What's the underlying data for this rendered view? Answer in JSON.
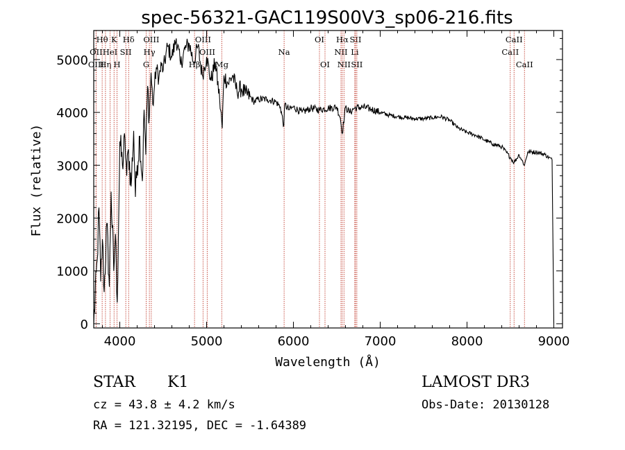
{
  "chart_data": {
    "type": "line",
    "title": "spec-56321-GAC119S00V3_sp06-216.fits",
    "xlabel": "Wavelength (Å)",
    "ylabel": "Flux (relative)",
    "xlim": [
      3700,
      9100
    ],
    "ylim": [
      -80,
      5550
    ],
    "xticks": [
      4000,
      5000,
      6000,
      7000,
      8000,
      9000
    ],
    "xtick_labels": [
      "4000",
      "5000",
      "6000",
      "7000",
      "8000",
      "9000"
    ],
    "yticks": [
      0,
      1000,
      2000,
      3000,
      4000,
      5000
    ],
    "ytick_labels": [
      "0",
      "1000",
      "2000",
      "3000",
      "4000",
      "5000"
    ],
    "spectrum": {
      "x": [
        3700,
        3740,
        3760,
        3780,
        3800,
        3820,
        3850,
        3880,
        3900,
        3930,
        3950,
        3970,
        3990,
        4000,
        4030,
        4060,
        4080,
        4100,
        4130,
        4160,
        4180,
        4200,
        4230,
        4260,
        4280,
        4300,
        4320,
        4340,
        4360,
        4380,
        4400,
        4420,
        4450,
        4480,
        4500,
        4550,
        4600,
        4650,
        4700,
        4750,
        4800,
        4850,
        4900,
        4950,
        5000,
        5050,
        5100,
        5150,
        5180,
        5200,
        5250,
        5300,
        5350,
        5400,
        5450,
        5500,
        5550,
        5600,
        5700,
        5800,
        5850,
        5890,
        5900,
        5950,
        6000,
        6100,
        6200,
        6300,
        6400,
        6500,
        6540,
        6563,
        6600,
        6650,
        6700,
        6800,
        6900,
        7000,
        7100,
        7200,
        7300,
        7400,
        7500,
        7600,
        7700,
        7800,
        7900,
        8000,
        8100,
        8200,
        8300,
        8400,
        8498,
        8542,
        8600,
        8662,
        8700,
        8800,
        8900,
        8980,
        9000
      ],
      "y": [
        0,
        1200,
        2200,
        800,
        1600,
        600,
        1900,
        700,
        2500,
        1000,
        1700,
        400,
        2300,
        3450,
        3000,
        3500,
        2800,
        3300,
        2600,
        3650,
        2400,
        3000,
        3550,
        2700,
        4050,
        3200,
        4500,
        3900,
        4750,
        4150,
        4500,
        4850,
        4650,
        4900,
        4800,
        5250,
        5050,
        5400,
        4900,
        5200,
        5300,
        4950,
        5250,
        4700,
        5050,
        4600,
        4950,
        4250,
        3700,
        4700,
        4550,
        4700,
        4400,
        4450,
        4350,
        4300,
        4200,
        4250,
        4250,
        4200,
        4100,
        3750,
        4150,
        4050,
        4100,
        4000,
        4080,
        4050,
        4080,
        4100,
        3900,
        3600,
        4100,
        4000,
        4080,
        4100,
        4060,
        4000,
        3950,
        3920,
        3900,
        3880,
        3880,
        3900,
        3920,
        3850,
        3700,
        3620,
        3570,
        3480,
        3400,
        3350,
        3150,
        3050,
        3200,
        3000,
        3250,
        3250,
        3200,
        3100,
        0
      ]
    },
    "line_markers": [
      {
        "wavelength": 3797,
        "label": "Hθ",
        "row": 0
      },
      {
        "wavelength": 3727,
        "label": "OII",
        "row": 1
      },
      {
        "wavelength": 3727,
        "label": "OIII",
        "row": 2
      },
      {
        "wavelength": 3835,
        "label": "Hη",
        "row": 2
      },
      {
        "wavelength": 3888,
        "label": "HeI",
        "row": 1
      },
      {
        "wavelength": 3934,
        "label": "K",
        "row": 0
      },
      {
        "wavelength": 3968,
        "label": "H",
        "row": 2
      },
      {
        "wavelength": 4069,
        "label": "SII",
        "row": 1
      },
      {
        "wavelength": 4102,
        "label": "Hδ",
        "row": 0
      },
      {
        "wavelength": 4304,
        "label": "G",
        "row": 2
      },
      {
        "wavelength": 4341,
        "label": "Hγ",
        "row": 1
      },
      {
        "wavelength": 4363,
        "label": "OIII",
        "row": 0
      },
      {
        "wavelength": 4861,
        "label": "Hβ",
        "row": 2
      },
      {
        "wavelength": 4959,
        "label": "OIII",
        "row": 0
      },
      {
        "wavelength": 5007,
        "label": "OIII",
        "row": 1
      },
      {
        "wavelength": 5175,
        "label": "Mg",
        "row": 2
      },
      {
        "wavelength": 5893,
        "label": "Na",
        "row": 1
      },
      {
        "wavelength": 6300,
        "label": "OI",
        "row": 0
      },
      {
        "wavelength": 6364,
        "label": "OI",
        "row": 2
      },
      {
        "wavelength": 6548,
        "label": "NII",
        "row": 1
      },
      {
        "wavelength": 6563,
        "label": "Hα",
        "row": 0
      },
      {
        "wavelength": 6583,
        "label": "NII",
        "row": 2
      },
      {
        "wavelength": 6707,
        "label": "Li",
        "row": 1
      },
      {
        "wavelength": 6716,
        "label": "SII",
        "row": 0
      },
      {
        "wavelength": 6731,
        "label": "SII",
        "row": 2
      },
      {
        "wavelength": 8498,
        "label": "CaII",
        "row": 1
      },
      {
        "wavelength": 8542,
        "label": "CaII",
        "row": 0
      },
      {
        "wavelength": 8662,
        "label": "CaII",
        "row": 2
      }
    ]
  },
  "info": {
    "object_class": "STAR",
    "subclass": "K1",
    "cz": "cz = 43.8 ± 4.2 km/s",
    "coords": "RA = 121.32195, DEC =  -1.64389",
    "survey": "LAMOST DR3",
    "obs_date": "Obs-Date: 20130128"
  }
}
